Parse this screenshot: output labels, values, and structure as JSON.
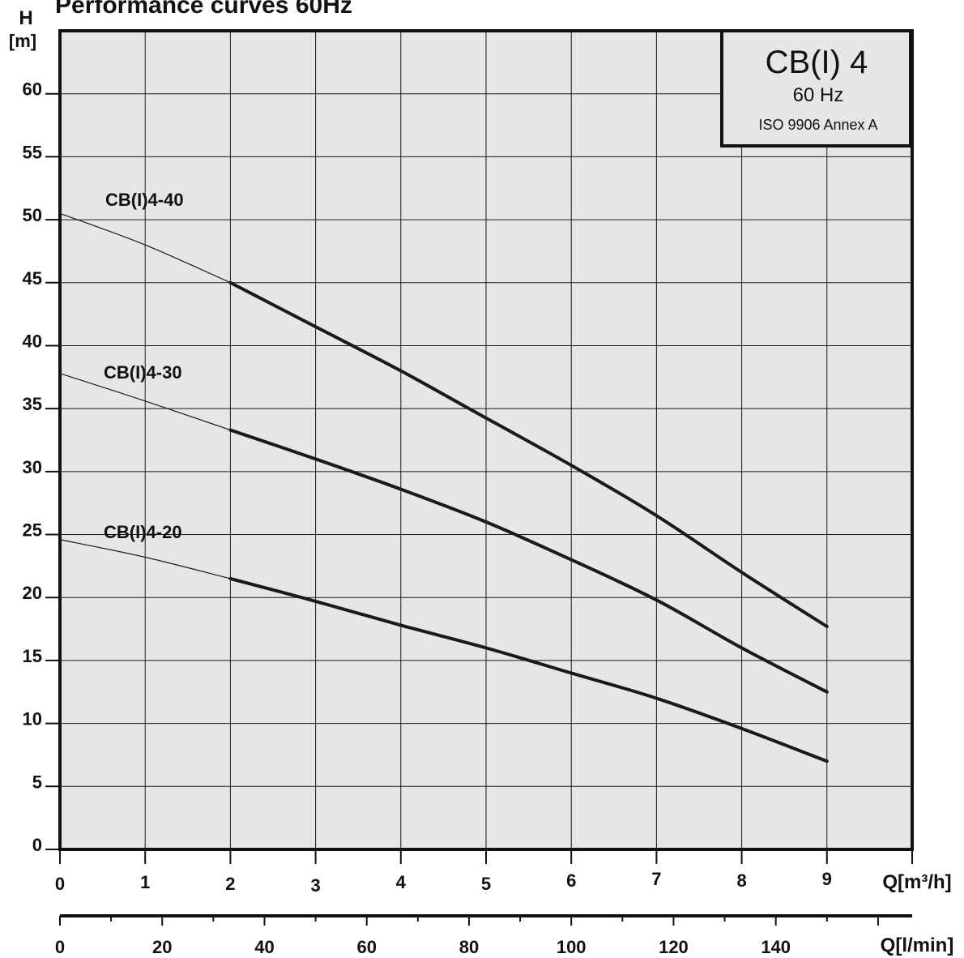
{
  "page_title": "Performance curves 60Hz",
  "info_box": {
    "model": "CB(I) 4",
    "frequency": "60 Hz",
    "standard": "ISO 9906 Annex A"
  },
  "axes": {
    "y_unit_top": "H",
    "y_unit_bottom": "[m]",
    "x_label_primary": "Q[m³/h]",
    "x_label_secondary": "Q[l/min]"
  },
  "colors": {
    "plot_background": "#e6e6e6",
    "grid": "#1a1a1a",
    "curve": "#1a1a1a"
  },
  "chart_data": {
    "type": "line",
    "title": "Performance curves 60Hz",
    "xlabel": "Q[m³/h]",
    "ylabel": "H [m]",
    "xlim": [
      0,
      10
    ],
    "ylim": [
      0,
      65
    ],
    "x_ticks": [
      "0",
      "1",
      "2",
      "3",
      "4",
      "5",
      "6",
      "7",
      "8",
      "9"
    ],
    "y_ticks": [
      "0",
      "5",
      "10",
      "15",
      "20",
      "25",
      "30",
      "35",
      "40",
      "45",
      "50",
      "55",
      "60"
    ],
    "secondary_x_axis": {
      "label": "Q[l/min]",
      "ticks": [
        "0",
        "20",
        "40",
        "60",
        "80",
        "100",
        "120",
        "140"
      ],
      "values": [
        0,
        20,
        40,
        60,
        80,
        100,
        120,
        140
      ],
      "factor_per_m3h": 16.6667
    },
    "grid": true,
    "legend": "inline labels",
    "series": [
      {
        "name": "CB(I)4-40",
        "thin_segment": [
          [
            0,
            50.5
          ],
          [
            1,
            48.0
          ],
          [
            2,
            45.0
          ]
        ],
        "thick_segment": [
          [
            2,
            45.0
          ],
          [
            3,
            41.5
          ],
          [
            4,
            38.0
          ],
          [
            4.8,
            35.0
          ],
          [
            6,
            30.5
          ],
          [
            7,
            26.5
          ],
          [
            8,
            22.0
          ],
          [
            9,
            17.7
          ]
        ]
      },
      {
        "name": "CB(I)4-30",
        "thin_segment": [
          [
            0,
            37.8
          ],
          [
            1,
            35.6
          ],
          [
            2,
            33.3
          ]
        ],
        "thick_segment": [
          [
            2,
            33.3
          ],
          [
            3,
            31.0
          ],
          [
            4,
            28.6
          ],
          [
            5,
            26.0
          ],
          [
            6,
            23.0
          ],
          [
            7,
            19.8
          ],
          [
            8,
            16.0
          ],
          [
            9,
            12.5
          ]
        ]
      },
      {
        "name": "CB(I)4-20",
        "thin_segment": [
          [
            0,
            24.6
          ],
          [
            1,
            23.2
          ],
          [
            2,
            21.5
          ]
        ],
        "thick_segment": [
          [
            2,
            21.5
          ],
          [
            3,
            19.7
          ],
          [
            4,
            17.8
          ],
          [
            5,
            16.0
          ],
          [
            6,
            14.0
          ],
          [
            7,
            12.0
          ],
          [
            8,
            9.6
          ],
          [
            9,
            7.0
          ]
        ]
      }
    ]
  }
}
